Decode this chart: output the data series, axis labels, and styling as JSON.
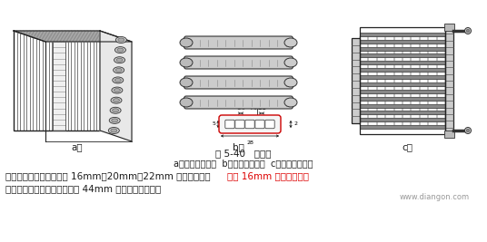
{
  "title": "图 5-40   冷凝器",
  "subtitle": "a）管片式冷凝器  b）管带式冷凝器  c）平行流冷凝器",
  "label_a": "a）",
  "label_b": "b）",
  "label_c": "c）",
  "body_text_line1_black": "平行流冷凝器厚度系列有 16mm、20mm、22mm 等多种规格，",
  "body_text_line1_red": "一般 16mm 平行流冷凝器",
  "body_text_line2": "效果，大致相当于相同面积的 44mm 原管带式冷凝器。",
  "watermark": "www.diangon.com",
  "bg_color": "#ffffff",
  "text_color": "#1a1a1a",
  "highlight_color": "#dd0000",
  "watermark_color": "#999999",
  "dim_color": "#cc0000",
  "fig_width": 5.36,
  "fig_height": 2.67,
  "dpi": 100
}
